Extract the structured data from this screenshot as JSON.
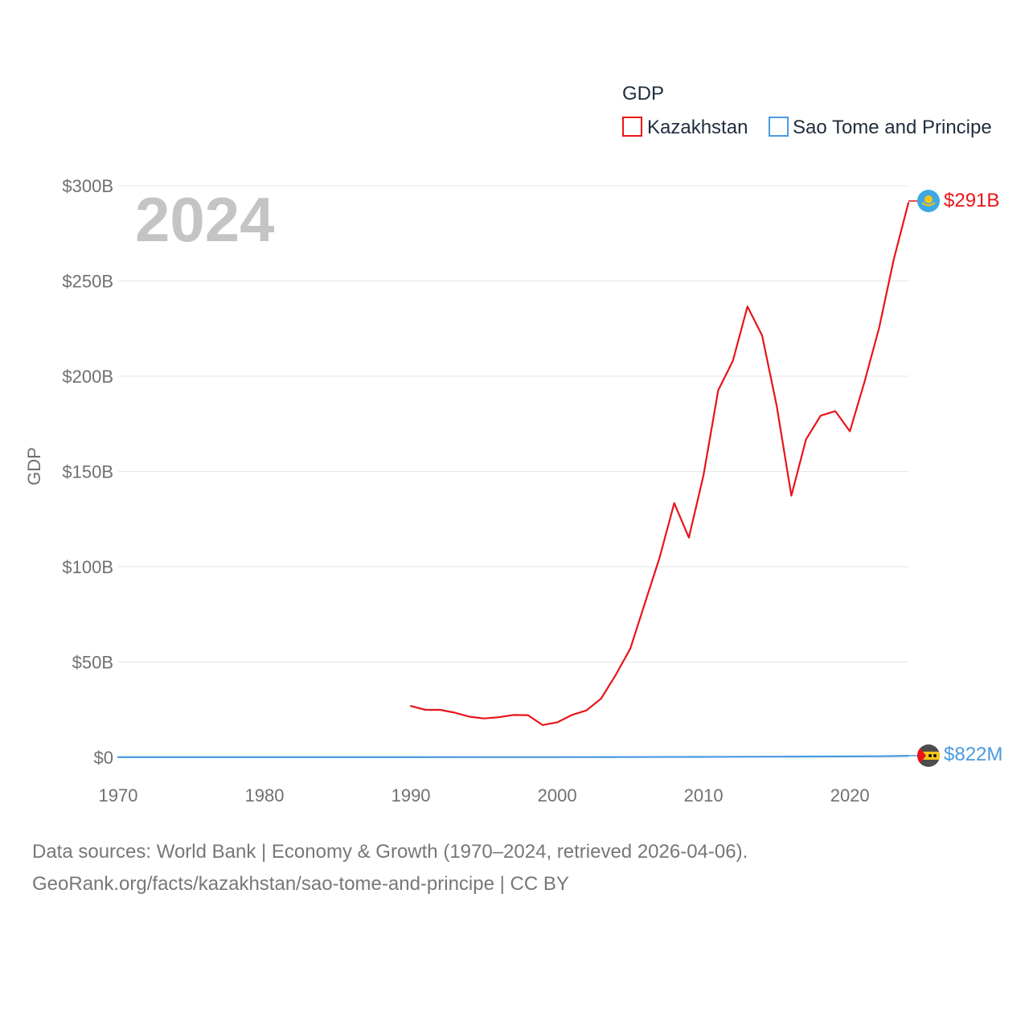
{
  "legend": {
    "title": "GDP",
    "entries": [
      {
        "name": "Kazakhstan",
        "color": "#e8141a"
      },
      {
        "name": "Sao Tome and Principe",
        "color": "#4a9ae0"
      }
    ]
  },
  "watermark_year": "2024",
  "end_labels": {
    "kazakhstan": "$291B",
    "sao_tome": "$822M"
  },
  "flag_icons": {
    "kazakhstan": "kazakhstan-flag-icon",
    "sao_tome": "sao-tome-flag-icon"
  },
  "footer": {
    "line1": "Data sources: World Bank | Economy & Growth (1970–2024, retrieved 2026-04-06).",
    "line2": "GeoRank.org/facts/kazakhstan/sao-tome-and-principe | CC BY"
  },
  "chart_data": {
    "type": "line",
    "title": "",
    "xlabel": "",
    "ylabel": "GDP",
    "xlim": [
      1970,
      2024
    ],
    "ylim": [
      0,
      300
    ],
    "y_unit": "billions USD",
    "x_ticks": [
      1970,
      1980,
      1990,
      2000,
      2010,
      2020
    ],
    "x_tick_labels": [
      "1970",
      "1980",
      "1990",
      "2000",
      "2010",
      "2020"
    ],
    "y_ticks": [
      0,
      50,
      100,
      150,
      200,
      250,
      300
    ],
    "y_tick_labels": [
      "$0",
      "$50B",
      "$100B",
      "$150B",
      "$200B",
      "$250B",
      "$300B"
    ],
    "grid": true,
    "legend_position": "top-right",
    "series": [
      {
        "name": "Kazakhstan",
        "color": "#e8141a",
        "x": [
          1990,
          1991,
          1992,
          1993,
          1994,
          1995,
          1996,
          1997,
          1998,
          1999,
          2000,
          2001,
          2002,
          2003,
          2004,
          2005,
          2006,
          2007,
          2008,
          2009,
          2010,
          2011,
          2012,
          2013,
          2014,
          2015,
          2016,
          2017,
          2018,
          2019,
          2020,
          2021,
          2022,
          2023,
          2024
        ],
        "values": [
          26.9,
          24.9,
          24.9,
          23.4,
          21.3,
          20.4,
          21.0,
          22.2,
          22.1,
          16.9,
          18.3,
          22.2,
          24.6,
          30.8,
          43.2,
          57.1,
          81.0,
          104.8,
          133.4,
          115.3,
          148.0,
          192.6,
          208.0,
          236.6,
          221.4,
          184.4,
          137.3,
          166.8,
          179.3,
          181.7,
          171.1,
          197.1,
          225.5,
          261.4,
          291.0
        ]
      },
      {
        "name": "Sao Tome and Principe",
        "color": "#4a9ae0",
        "x": [
          1970,
          1975,
          1980,
          1985,
          1990,
          1995,
          2000,
          2005,
          2010,
          2015,
          2020,
          2022,
          2024
        ],
        "values": [
          0.03,
          0.04,
          0.05,
          0.05,
          0.06,
          0.1,
          0.08,
          0.12,
          0.2,
          0.32,
          0.47,
          0.55,
          0.822
        ]
      }
    ]
  }
}
